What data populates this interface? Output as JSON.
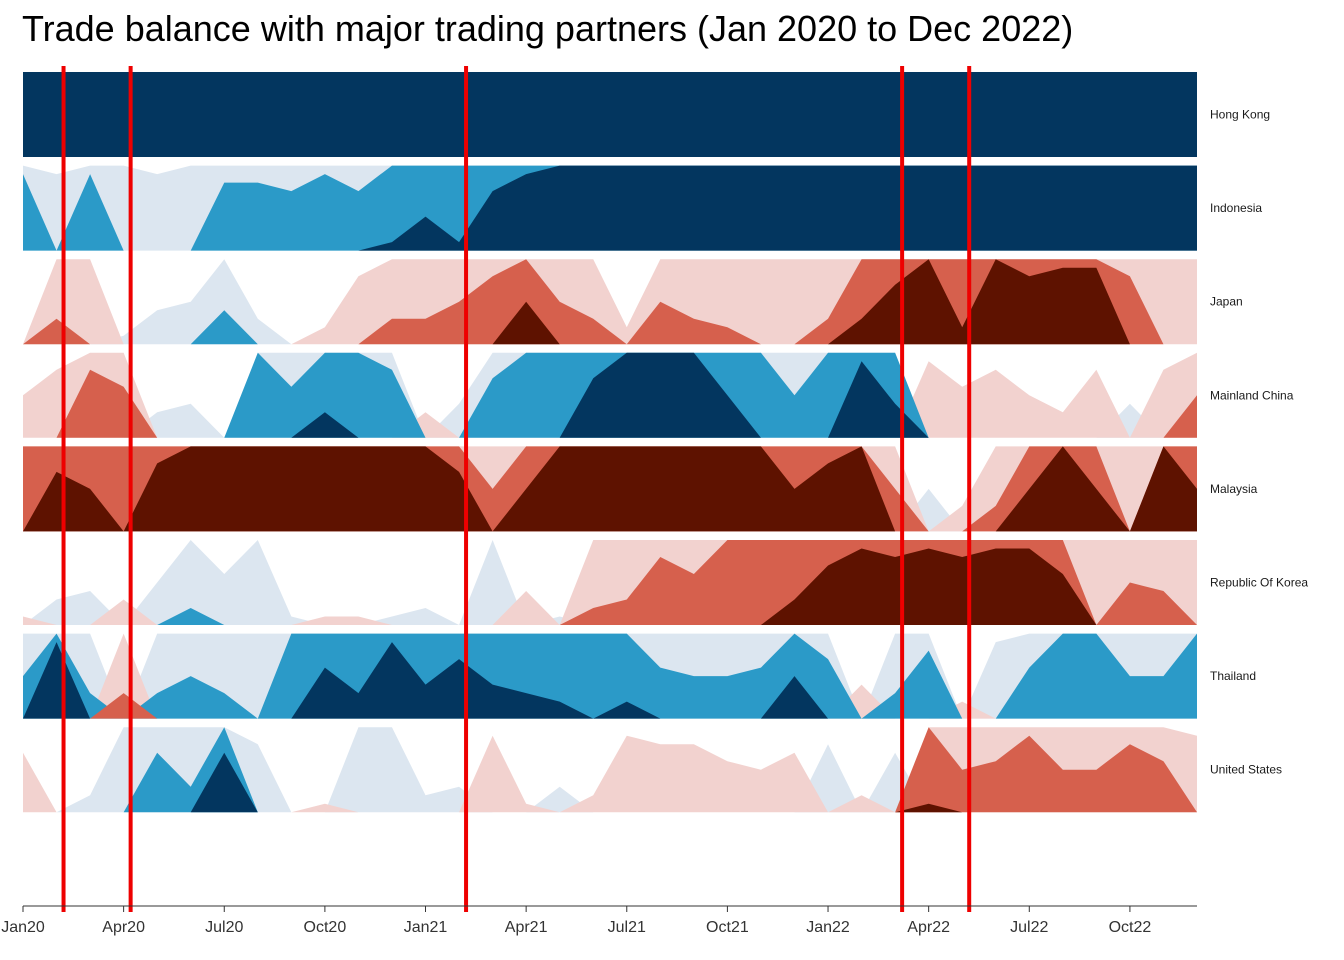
{
  "chart_data": {
    "type": "area",
    "subtype": "horizon",
    "title": "Trade balance with major trading partners (Jan 2020 to Dec 2022)",
    "xlabel": "",
    "ylabel": "",
    "x_ticks": [
      "Jan20",
      "Apr20",
      "Jul20",
      "Oct20",
      "Jan21",
      "Apr21",
      "Jul21",
      "Oct21",
      "Jan22",
      "Apr22",
      "Jul22",
      "Oct22"
    ],
    "months": [
      "2020-01",
      "2020-02",
      "2020-03",
      "2020-04",
      "2020-05",
      "2020-06",
      "2020-07",
      "2020-08",
      "2020-09",
      "2020-10",
      "2020-11",
      "2020-12",
      "2021-01",
      "2021-02",
      "2021-03",
      "2021-04",
      "2021-05",
      "2021-06",
      "2021-07",
      "2021-08",
      "2021-09",
      "2021-10",
      "2021-11",
      "2021-12",
      "2022-01",
      "2022-02",
      "2022-03",
      "2022-04",
      "2022-05",
      "2022-06",
      "2022-07",
      "2022-08",
      "2022-09",
      "2022-10",
      "2022-11",
      "2022-12"
    ],
    "bands": 3,
    "colors": {
      "pos1": "#dce6f0",
      "pos2": "#2b9ac8",
      "pos3": "#03365f",
      "neg1": "#f2d2cf",
      "neg2": "#d6604d",
      "neg3": "#5e1200",
      "cutoff": "#ee0000"
    },
    "cutoff_months": [
      "2020-02",
      "2020-04",
      "2021-02",
      "2022-03",
      "2022-05"
    ],
    "series": [
      {
        "name": "Hong Kong",
        "values": [
          3.0,
          3.0,
          3.0,
          3.0,
          3.0,
          3.0,
          3.0,
          3.0,
          3.0,
          3.0,
          3.0,
          3.0,
          3.0,
          3.0,
          3.0,
          3.0,
          3.0,
          3.0,
          3.0,
          3.0,
          3.0,
          3.0,
          3.0,
          3.0,
          3.0,
          3.0,
          3.0,
          3.0,
          3.0,
          3.0,
          3.0,
          3.0,
          3.0,
          3.0,
          3.0,
          3.0
        ]
      },
      {
        "name": "Indonesia",
        "values": [
          1.9,
          0.9,
          1.9,
          1.0,
          0.9,
          1.0,
          1.8,
          1.8,
          1.7,
          1.9,
          1.7,
          2.1,
          2.4,
          2.1,
          2.7,
          2.9,
          3.0,
          3.0,
          3.0,
          3.0,
          3.0,
          3.0,
          3.0,
          3.0,
          3.0,
          3.0,
          3.0,
          3.0,
          3.0,
          3.0,
          3.0,
          3.0,
          3.0,
          3.0,
          3.0,
          3.0
        ]
      },
      {
        "name": "Japan",
        "values": [
          0.0,
          -1.3,
          -1.0,
          0.1,
          0.4,
          0.5,
          1.4,
          0.3,
          0.0,
          -0.2,
          -0.8,
          -1.3,
          -1.3,
          -1.5,
          -1.8,
          -2.5,
          -1.5,
          -1.3,
          -0.2,
          -1.5,
          -1.3,
          -1.2,
          -1.0,
          -1.0,
          -1.3,
          -2.3,
          -2.7,
          -3.0,
          -2.2,
          -3.0,
          -2.8,
          -2.9,
          -2.9,
          -1.8,
          -1.0,
          -1.0
        ]
      },
      {
        "name": "Mainland China",
        "values": [
          -0.5,
          -0.8,
          -1.8,
          -1.6,
          0.3,
          0.4,
          0.0,
          2.0,
          1.6,
          2.3,
          2.0,
          1.8,
          -0.3,
          0.4,
          1.7,
          2.0,
          2.0,
          2.7,
          3.0,
          3.0,
          3.0,
          2.5,
          2.0,
          1.5,
          2.0,
          2.9,
          2.4,
          -0.9,
          -0.6,
          -0.8,
          -0.5,
          -0.3,
          -0.8,
          0.4,
          -0.8,
          -1.5
        ]
      },
      {
        "name": "Malaysia",
        "values": [
          -2.0,
          -2.7,
          -2.5,
          -2.0,
          -2.8,
          -3.0,
          -3.0,
          -3.0,
          -3.0,
          -3.0,
          -3.0,
          -3.0,
          -3.0,
          -2.7,
          -1.5,
          -2.5,
          -3.0,
          -3.0,
          -3.0,
          -3.0,
          -3.0,
          -3.0,
          -3.0,
          -2.5,
          -2.8,
          -3.0,
          -1.5,
          0.5,
          -0.3,
          -1.3,
          -2.5,
          -3.0,
          -2.5,
          -1.0,
          -3.0,
          -2.5
        ]
      },
      {
        "name": "Republic Of Korea",
        "values": [
          -0.1,
          0.3,
          0.4,
          -0.3,
          0.5,
          1.2,
          0.6,
          1.0,
          0.1,
          -0.1,
          -0.1,
          0.1,
          0.2,
          0.0,
          1.0,
          -0.4,
          0.1,
          -1.2,
          -1.3,
          -1.8,
          -1.6,
          -2.0,
          -2.0,
          -2.3,
          -2.7,
          -2.9,
          -2.8,
          -2.9,
          -2.8,
          -2.9,
          -2.9,
          -2.6,
          -1.0,
          -1.5,
          -1.4,
          -1.0
        ]
      },
      {
        "name": "Thailand",
        "values": [
          1.5,
          2.9,
          1.3,
          -1.3,
          1.3,
          1.5,
          1.3,
          1.0,
          2.0,
          2.6,
          2.3,
          2.9,
          2.4,
          2.7,
          2.4,
          2.3,
          2.2,
          2.0,
          2.2,
          1.6,
          1.5,
          1.5,
          1.6,
          2.5,
          1.7,
          -0.4,
          1.3,
          1.8,
          -0.2,
          0.9,
          1.6,
          2.0,
          2.0,
          1.5,
          1.5,
          2.0
        ]
      },
      {
        "name": "United States",
        "values": [
          -0.7,
          0.0,
          0.2,
          1.0,
          1.7,
          1.3,
          2.7,
          0.8,
          0.0,
          -0.1,
          1.0,
          1.0,
          0.2,
          0.3,
          -0.9,
          -0.1,
          0.3,
          -0.2,
          -0.9,
          -0.8,
          -0.8,
          -0.6,
          -0.5,
          -0.7,
          0.8,
          -0.2,
          0.7,
          -2.1,
          -1.5,
          -1.6,
          -1.9,
          -1.5,
          -1.5,
          -1.8,
          -1.6,
          -0.9
        ]
      }
    ]
  }
}
